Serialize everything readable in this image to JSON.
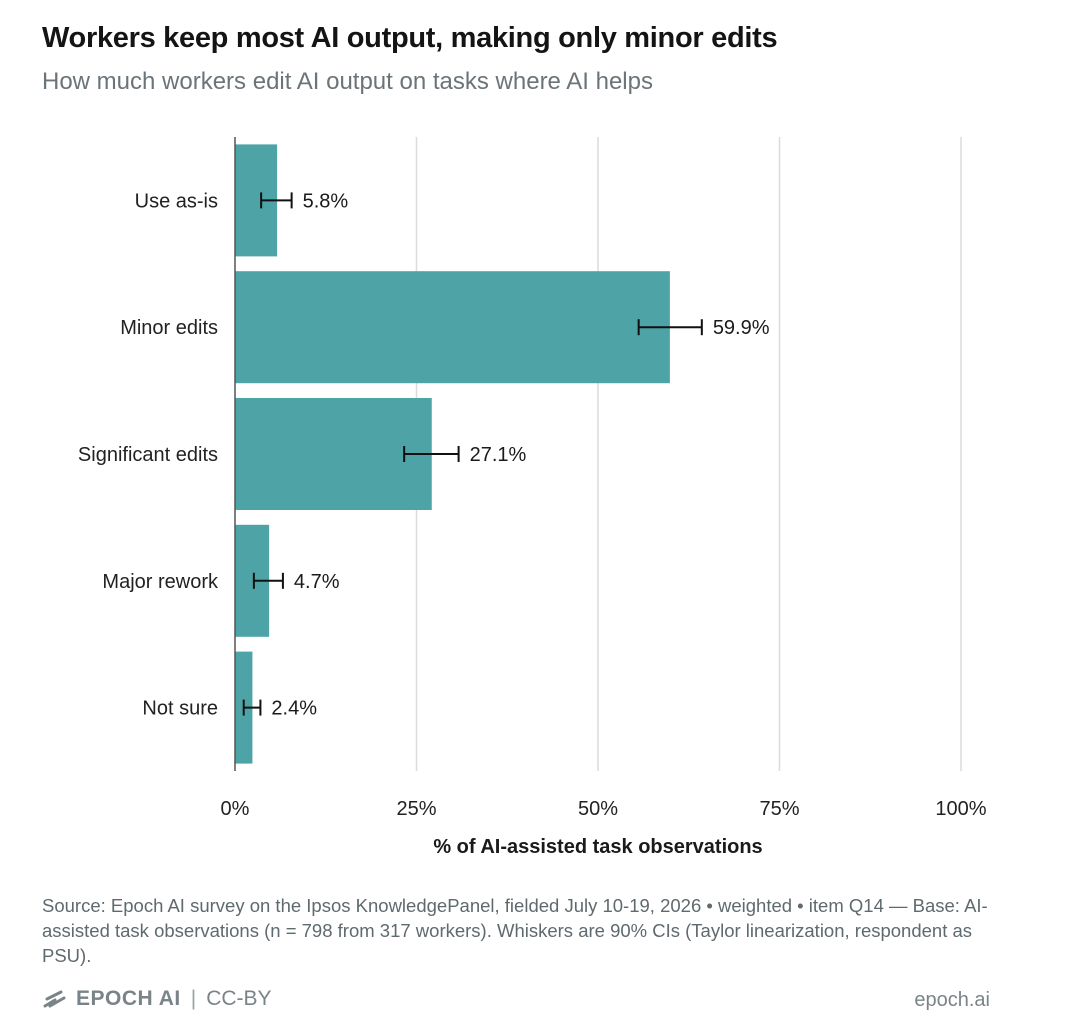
{
  "header": {
    "title": "Workers keep most AI output, making only minor edits",
    "subtitle": "How much workers edit AI output on tasks where AI helps"
  },
  "chart_data": {
    "type": "bar",
    "orientation": "horizontal",
    "categories": [
      "Use as-is",
      "Minor edits",
      "Significant edits",
      "Major rework",
      "Not sure"
    ],
    "values": [
      5.8,
      59.9,
      27.1,
      4.7,
      2.4
    ],
    "value_labels": [
      "5.8%",
      "59.9%",
      "27.1%",
      "4.7%",
      "2.4%"
    ],
    "error_low": [
      3.6,
      55.6,
      23.3,
      2.6,
      1.2
    ],
    "error_high": [
      7.8,
      64.3,
      30.8,
      6.6,
      3.5
    ],
    "xlim": [
      0,
      100
    ],
    "xticks": [
      0,
      25,
      50,
      75,
      100
    ],
    "xtick_labels": [
      "0%",
      "25%",
      "50%",
      "75%",
      "100%"
    ],
    "xlabel": "% of AI-assisted task observations",
    "ylabel": "",
    "grid": "vertical",
    "bar_color": "#4ea3a6"
  },
  "footer": {
    "source": "Source: Epoch AI survey on the Ipsos KnowledgePanel, fielded July 10-19, 2026 • weighted • item Q14 — Base: AI-assisted task observations (n = 798 from 317 workers). Whiskers are 90% CIs (Taylor linearization, respondent as PSU).",
    "brand": "EPOCH AI",
    "license": "CC-BY",
    "site": "epoch.ai"
  }
}
